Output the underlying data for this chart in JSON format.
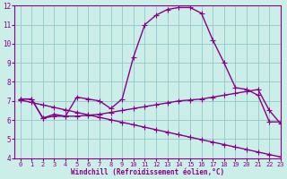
{
  "line1_x": [
    0,
    1,
    2,
    3,
    4,
    5,
    6,
    7,
    8,
    9,
    10,
    11,
    12,
    13,
    14,
    15,
    16,
    17,
    18,
    19,
    20,
    21,
    22,
    23
  ],
  "line1_y": [
    7.1,
    7.1,
    6.1,
    6.3,
    6.2,
    7.2,
    7.1,
    7.0,
    6.6,
    7.1,
    9.3,
    11.0,
    11.5,
    11.8,
    11.9,
    11.9,
    11.6,
    10.2,
    9.0,
    7.7,
    7.6,
    7.3,
    5.9,
    5.9
  ],
  "line2_x": [
    0,
    1,
    2,
    3,
    4,
    5,
    6,
    7,
    8,
    9,
    10,
    11,
    12,
    13,
    14,
    15,
    16,
    17,
    18,
    19,
    20,
    21,
    22,
    23
  ],
  "line2_y": [
    7.1,
    7.1,
    6.1,
    6.2,
    6.2,
    6.2,
    6.25,
    6.3,
    6.4,
    6.5,
    6.6,
    6.7,
    6.8,
    6.9,
    7.0,
    7.05,
    7.1,
    7.2,
    7.3,
    7.4,
    7.5,
    7.6,
    6.5,
    5.8
  ],
  "line3_x": [
    0,
    1,
    2,
    3,
    4,
    5,
    6,
    7,
    8,
    9,
    10,
    11,
    12,
    13,
    14,
    15,
    16,
    17,
    18,
    19,
    20,
    21,
    22,
    23
  ],
  "line3_y": [
    7.05,
    6.92,
    6.79,
    6.66,
    6.53,
    6.4,
    6.27,
    6.14,
    6.01,
    5.88,
    5.75,
    5.62,
    5.49,
    5.36,
    5.23,
    5.1,
    4.97,
    4.84,
    4.71,
    4.58,
    4.45,
    4.32,
    4.19,
    4.06
  ],
  "color": "#880088",
  "bg_color": "#cceee8",
  "grid_color": "#99cccc",
  "xlabel": "Windchill (Refroidissement éolien,°C)",
  "xlim": [
    -0.5,
    23
  ],
  "ylim": [
    4,
    12
  ],
  "xticks": [
    0,
    1,
    2,
    3,
    4,
    5,
    6,
    7,
    8,
    9,
    10,
    11,
    12,
    13,
    14,
    15,
    16,
    17,
    18,
    19,
    20,
    21,
    22,
    23
  ],
  "yticks": [
    4,
    5,
    6,
    7,
    8,
    9,
    10,
    11,
    12
  ],
  "marker": "+",
  "markersize": 4,
  "linewidth": 1.0
}
